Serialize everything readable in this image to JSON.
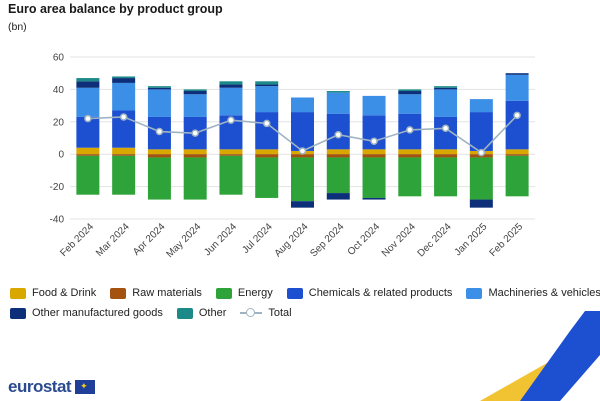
{
  "chart_data": {
    "type": "bar",
    "stacked": true,
    "title": "Euro area balance by product group",
    "unit_label": "(bn)",
    "ylim": [
      -40,
      60
    ],
    "yticks": [
      60,
      40,
      20,
      0,
      -20,
      -40
    ],
    "grid": true,
    "legend_position": "bottom",
    "categories": [
      "Feb 2024",
      "Mar 2024",
      "Apr 2024",
      "May 2024",
      "Jun 2024",
      "Jul 2024",
      "Aug 2024",
      "Sep 2024",
      "Oct 2024",
      "Nov 2024",
      "Dec 2024",
      "Jan 2025",
      "Feb 2025"
    ],
    "series": [
      {
        "name": "Food & Drink",
        "color": "#d9a800",
        "values": [
          4,
          4,
          3,
          3,
          3,
          3,
          2,
          3,
          3,
          3,
          3,
          2,
          3
        ]
      },
      {
        "name": "Raw materials",
        "color": "#a3520f",
        "values": [
          -1,
          -1,
          -2,
          -2,
          -1,
          -2,
          -2,
          -2,
          -2,
          -2,
          -2,
          -2,
          -1
        ]
      },
      {
        "name": "Energy",
        "color": "#2ea33a",
        "values": [
          -24,
          -24,
          -26,
          -26,
          -24,
          -25,
          -27,
          -22,
          -25,
          -24,
          -24,
          -26,
          -25
        ]
      },
      {
        "name": "Chemicals & related products",
        "color": "#1d4fd1",
        "values": [
          19,
          23,
          20,
          20,
          21,
          23,
          24,
          22,
          21,
          22,
          20,
          24,
          30
        ]
      },
      {
        "name": "Machineries & vehicles",
        "color": "#3b8fe6",
        "values": [
          18,
          17,
          17,
          14,
          17,
          16,
          9,
          13,
          12,
          12,
          17,
          8,
          16
        ]
      },
      {
        "name": "Other manufactured goods",
        "color": "#0d2f7a",
        "values": [
          4,
          3,
          1,
          2,
          2,
          1,
          -4,
          -4,
          -1,
          2,
          1,
          -5,
          1
        ]
      },
      {
        "name": "Other",
        "color": "#1d8a8a",
        "values": [
          2,
          1,
          1,
          1,
          2,
          2,
          0,
          1,
          0,
          1,
          1,
          0,
          0
        ]
      }
    ],
    "total": {
      "name": "Total",
      "color": "#9fb4c2",
      "values": [
        22,
        23,
        14,
        13,
        21,
        19,
        2,
        12,
        8,
        15,
        16,
        1,
        24
      ]
    }
  },
  "logo_text": "eurostat"
}
